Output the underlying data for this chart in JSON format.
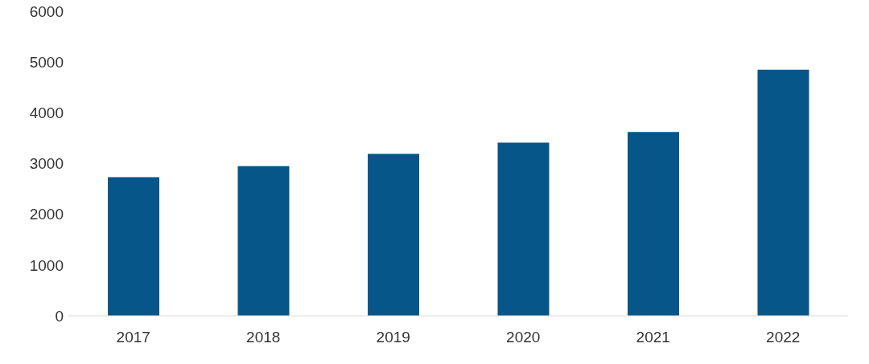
{
  "chart_data": {
    "type": "bar",
    "categories": [
      "2017",
      "2018",
      "2019",
      "2020",
      "2021",
      "2022"
    ],
    "values": [
      2730,
      2950,
      3190,
      3410,
      3620,
      4850
    ],
    "color": "#06568a",
    "ylim": [
      0,
      6000
    ],
    "yticks": [
      0,
      1000,
      2000,
      3000,
      4000,
      5000,
      6000
    ],
    "grid": false
  }
}
